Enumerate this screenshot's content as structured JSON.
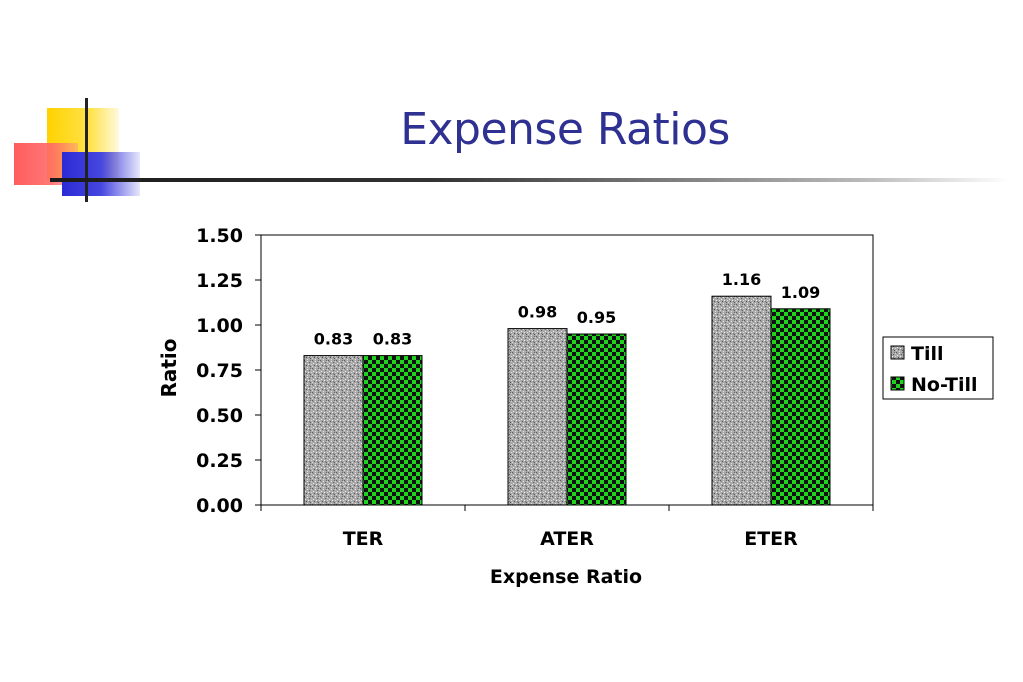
{
  "slide": {
    "title": "Expense Ratios"
  },
  "colors": {
    "title": "#2e3192",
    "till": "#a8a8a8",
    "no_till": "#22cc22"
  },
  "chart_data": {
    "type": "bar",
    "title": "",
    "xlabel": "Expense Ratio",
    "ylabel": "Ratio",
    "categories": [
      "TER",
      "ATER",
      "ETER"
    ],
    "ylim": [
      0,
      1.5
    ],
    "yticks": [
      "0.00",
      "0.25",
      "0.50",
      "0.75",
      "1.00",
      "1.25",
      "1.50"
    ],
    "series": [
      {
        "name": "Till",
        "values": [
          0.83,
          0.98,
          1.16
        ],
        "labels": [
          "0.83",
          "0.98",
          "1.16"
        ],
        "pattern": "speckled gray"
      },
      {
        "name": "No-Till",
        "values": [
          0.83,
          0.95,
          1.09
        ],
        "labels": [
          "0.83",
          "0.95",
          "1.09"
        ],
        "pattern": "green checkerboard"
      }
    ],
    "grid": false,
    "legend": "right"
  }
}
